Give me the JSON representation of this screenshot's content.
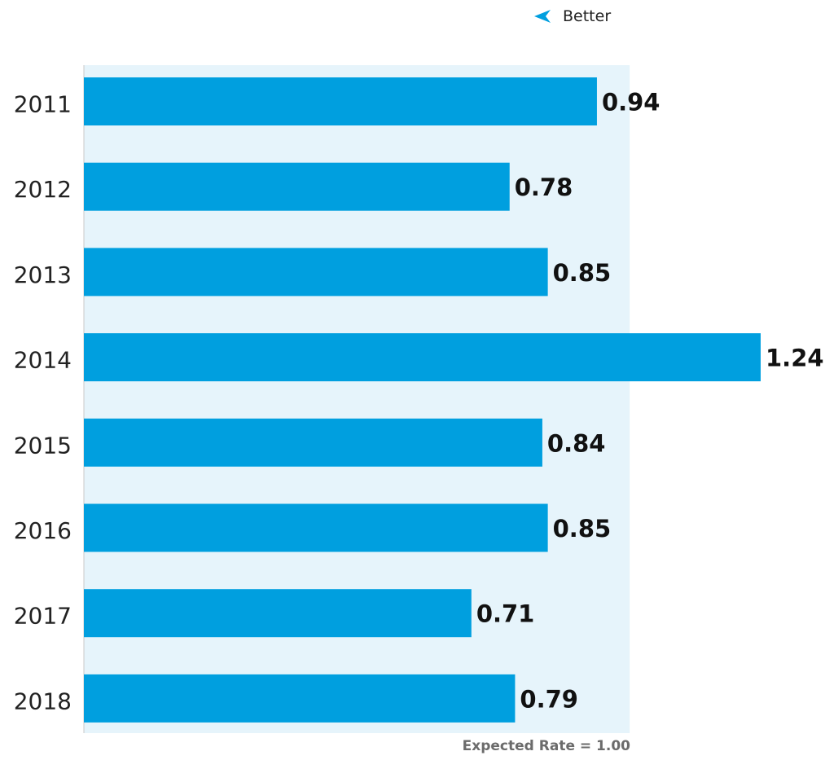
{
  "legend": {
    "icon": "left-arrow-icon",
    "label": "Better",
    "color": "#009fdf"
  },
  "footnote": "Expected Rate = 1.00",
  "colors": {
    "bar": "#009fdf",
    "band": "#e6f4fb",
    "axis": "#c9c9c9",
    "value_label": "#111111",
    "category_label": "#222222"
  },
  "chart_data": {
    "type": "bar",
    "orientation": "horizontal",
    "categories": [
      "2011",
      "2012",
      "2013",
      "2014",
      "2015",
      "2016",
      "2017",
      "2018"
    ],
    "values": [
      0.94,
      0.78,
      0.85,
      1.24,
      0.84,
      0.85,
      0.71,
      0.79
    ],
    "value_labels": [
      "0.94",
      "0.78",
      "0.85",
      "1.24",
      "0.84",
      "0.85",
      "0.71",
      "0.79"
    ],
    "reference_value": 1.0,
    "xlim": [
      0,
      1.24
    ],
    "title": "",
    "xlabel": "",
    "ylabel": ""
  }
}
